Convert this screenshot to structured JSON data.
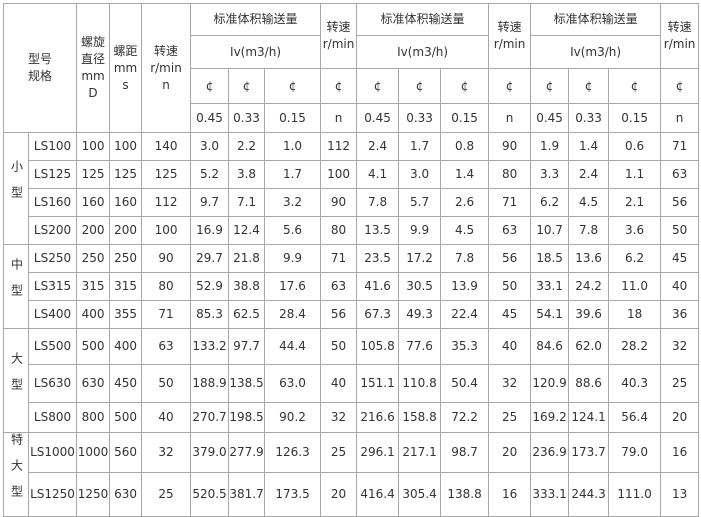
{
  "header": {
    "model": [
      "型号",
      "规格"
    ],
    "diameter": [
      "螺旋",
      "直径",
      "mm",
      "D"
    ],
    "pitch": [
      "螺距",
      "mm",
      "s"
    ],
    "speed": [
      "转速",
      "r/min",
      "n"
    ],
    "groups": [
      {
        "title": "标准体积输送量",
        "unit": "Iv(m3/h)",
        "symbols": [
          "¢",
          "¢",
          "¢"
        ],
        "fill": [
          "0.45",
          "0.33",
          "0.15"
        ],
        "speed": [
          "转速",
          "r/min"
        ],
        "speed_symbol": "¢",
        "speed_unit": "n"
      },
      {
        "title": "标准体积输送量",
        "unit": "Iv(m3/h)",
        "symbols": [
          "¢",
          "¢",
          "¢"
        ],
        "fill": [
          "0.45",
          "0.33",
          "0.15"
        ],
        "speed": [
          "转速",
          "r/min"
        ],
        "speed_symbol": "¢",
        "speed_unit": "n"
      },
      {
        "title": "标准体积输送量",
        "unit": "Iv(m3/h)",
        "symbols": [
          "¢",
          "¢",
          "¢"
        ],
        "fill": [
          "0.45",
          "0.33",
          "0.15"
        ],
        "speed": [
          "转速",
          "r/min"
        ],
        "speed_symbol": "¢",
        "speed_unit": "n"
      }
    ]
  },
  "body": [
    {
      "label": "小型",
      "rows": [
        [
          "LS100",
          "100",
          "100",
          "140",
          "3.0",
          "2.2",
          "1.0",
          "112",
          "2.4",
          "1.7",
          "0.8",
          "90",
          "1.9",
          "1.4",
          "0.6",
          "71"
        ],
        [
          "LS125",
          "125",
          "125",
          "125",
          "5.2",
          "3.8",
          "1.7",
          "100",
          "4.1",
          "3.0",
          "1.4",
          "80",
          "3.3",
          "2.4",
          "1.1",
          "63"
        ],
        [
          "LS160",
          "160",
          "160",
          "112",
          "9.7",
          "7.1",
          "3.2",
          "90",
          "7.8",
          "5.7",
          "2.6",
          "71",
          "6.2",
          "4.5",
          "2.1",
          "56"
        ],
        [
          "LS200",
          "200",
          "200",
          "100",
          "16.9",
          "12.4",
          "5.6",
          "80",
          "13.5",
          "9.9",
          "4.5",
          "63",
          "10.7",
          "7.8",
          "3.6",
          "50"
        ]
      ]
    },
    {
      "label": "中型",
      "rows": [
        [
          "LS250",
          "250",
          "250",
          "90",
          "29.7",
          "21.8",
          "9.9",
          "71",
          "23.5",
          "17.2",
          "7.8",
          "56",
          "18.5",
          "13.6",
          "6.2",
          "45"
        ],
        [
          "LS315",
          "315",
          "315",
          "80",
          "52.9",
          "38.8",
          "17.6",
          "63",
          "41.6",
          "30.5",
          "13.9",
          "50",
          "33.1",
          "24.2",
          "11.0",
          "40"
        ],
        [
          "LS400",
          "400",
          "355",
          "71",
          "85.3",
          "62.5",
          "28.4",
          "56",
          "67.3",
          "49.3",
          "22.4",
          "45",
          "54.1",
          "39.6",
          "18",
          "36"
        ]
      ]
    },
    {
      "label": "大型",
      "rows": [
        [
          "LS500",
          "500",
          "400",
          "63",
          "133.2",
          "97.7",
          "44.4",
          "50",
          "105.8",
          "77.6",
          "35.3",
          "40",
          "84.6",
          "62.0",
          "28.2",
          "32"
        ],
        [
          "LS630",
          "630",
          "450",
          "50",
          "188.9",
          "138.5",
          "63.0",
          "40",
          "151.1",
          "110.8",
          "50.4",
          "32",
          "120.9",
          "88.6",
          "40.3",
          "25"
        ],
        [
          "LS800",
          "800",
          "500",
          "40",
          "270.7",
          "198.5",
          "90.2",
          "32",
          "216.6",
          "158.8",
          "72.2",
          "25",
          "169.2",
          "124.1",
          "56.4",
          "20"
        ]
      ]
    },
    {
      "label": "特大型",
      "rows": [
        [
          "LS1000",
          "1000",
          "560",
          "32",
          "379.0",
          "277.9",
          "126.3",
          "25",
          "296.1",
          "217.1",
          "98.7",
          "20",
          "236.9",
          "173.7",
          "79.0",
          "16"
        ],
        [
          "LS1250",
          "1250",
          "630",
          "25",
          "520.5",
          "381.7",
          "173.5",
          "20",
          "416.4",
          "305.4",
          "138.8",
          "16",
          "333.1",
          "244.3",
          "111.0",
          "13"
        ]
      ]
    }
  ]
}
